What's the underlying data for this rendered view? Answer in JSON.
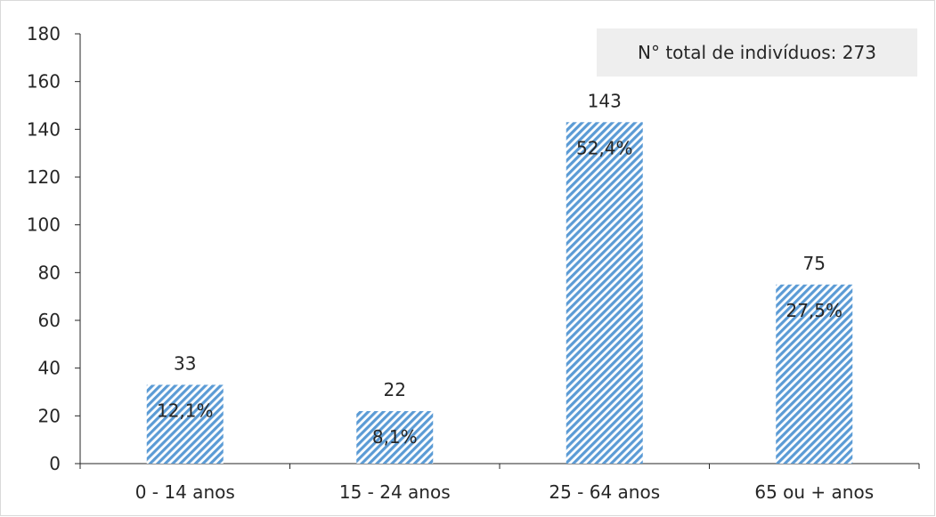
{
  "chart_data": {
    "type": "bar",
    "categories": [
      "0 - 14 anos",
      "15 - 24 anos",
      "25 - 64 anos",
      "65 ou + anos"
    ],
    "values": [
      33,
      22,
      143,
      75
    ],
    "percent_labels": [
      "12,1%",
      "8,1%",
      "52,4%",
      "27,5%"
    ],
    "ylim": [
      0,
      180
    ],
    "yticks": [
      0,
      20,
      40,
      60,
      80,
      100,
      120,
      140,
      160,
      180
    ],
    "grid": false,
    "annotation": "N° total de indivíduos: 273",
    "colors": {
      "bar": "#5b9bd5",
      "bar_hatch_bg": "#ffffff",
      "axis": "#262626",
      "annotation_bg": "#eeeeee"
    }
  }
}
